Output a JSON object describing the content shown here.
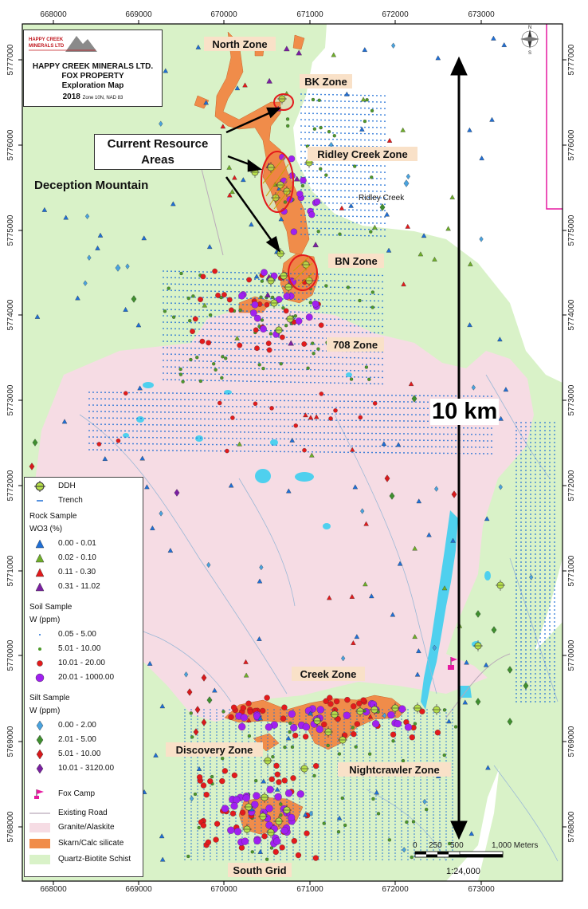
{
  "title_block": {
    "logo_text": "HAPPY CREEK MINERALS LTD",
    "company": "HAPPY CREEK MINERALS LTD.",
    "property": "FOX PROPERTY",
    "map_type": "Exploration Map",
    "year": "2018",
    "projection": "Zone 10N, NAD 83"
  },
  "annotations": {
    "resource_label": "Current Resource Areas",
    "resource_line1": "Current Resource",
    "resource_line2": "Areas",
    "deception": "Deception Mountain",
    "scale_bar_label": "10 km",
    "ridley_creek": "Ridley Creek"
  },
  "zones": [
    {
      "name": "North Zone"
    },
    {
      "name": "BK Zone"
    },
    {
      "name": "Ridley Creek Zone"
    },
    {
      "name": "BN Zone"
    },
    {
      "name": "708 Zone"
    },
    {
      "name": "Creek Zone"
    },
    {
      "name": "Discovery Zone"
    },
    {
      "name": "Nightcrawler Zone"
    },
    {
      "name": "South Grid"
    }
  ],
  "axes": {
    "easting": [
      "668000",
      "669000",
      "670000",
      "671000",
      "672000",
      "673000"
    ],
    "northing": [
      "5777000",
      "5776000",
      "5775000",
      "5774000",
      "5773000",
      "5772000",
      "5771000",
      "5770000",
      "5769000",
      "5768000"
    ]
  },
  "scale": {
    "ticks": [
      "0",
      "250",
      "500",
      "1,000 Meters"
    ],
    "ratio": "1:24,000"
  },
  "legend": {
    "ddh": "DDH",
    "trench": "Trench",
    "rock_title": "Rock Sample",
    "rock_unit": "WO3 (%)",
    "rock": [
      {
        "label": "0.00 - 0.01",
        "color": "#1f6fd6"
      },
      {
        "label": "0.02 - 0.10",
        "color": "#6fae2a"
      },
      {
        "label": "0.11 - 0.30",
        "color": "#e31a1c"
      },
      {
        "label": "0.31 - 11.02",
        "color": "#7b1fa2"
      }
    ],
    "soil_title": "Soil Sample",
    "soil_unit": "W (ppm)",
    "soil": [
      {
        "label": "0.05 - 5.00",
        "color": "#1f6fd6"
      },
      {
        "label": "5.01 - 10.00",
        "color": "#4c9a2a"
      },
      {
        "label": "10.01 - 20.00",
        "color": "#e31a1c"
      },
      {
        "label": "20.01 - 1000.00",
        "color": "#a020f0"
      }
    ],
    "silt_title": "Silt Sample",
    "silt_unit": "W (ppm)",
    "silt": [
      {
        "label": "0.00 - 2.00",
        "color": "#4aa3df"
      },
      {
        "label": "2.01 - 5.00",
        "color": "#3f8f2f"
      },
      {
        "label": "5.01 - 10.00",
        "color": "#d7191c"
      },
      {
        "label": "10.01 - 3120.00",
        "color": "#7b1fa2"
      }
    ],
    "fox_camp": "Fox Camp",
    "road": "Existing Road",
    "granite": "Granite/Alaskite",
    "skarn": "Skarn/Calc silicate",
    "schist": "Quartz-Biotite Schist"
  },
  "colors": {
    "schist": "#d9f2c8",
    "granite": "#f6dce4",
    "skarn": "#f08c4a",
    "lake": "#4fd0ee",
    "resource": "#e31a1c"
  }
}
